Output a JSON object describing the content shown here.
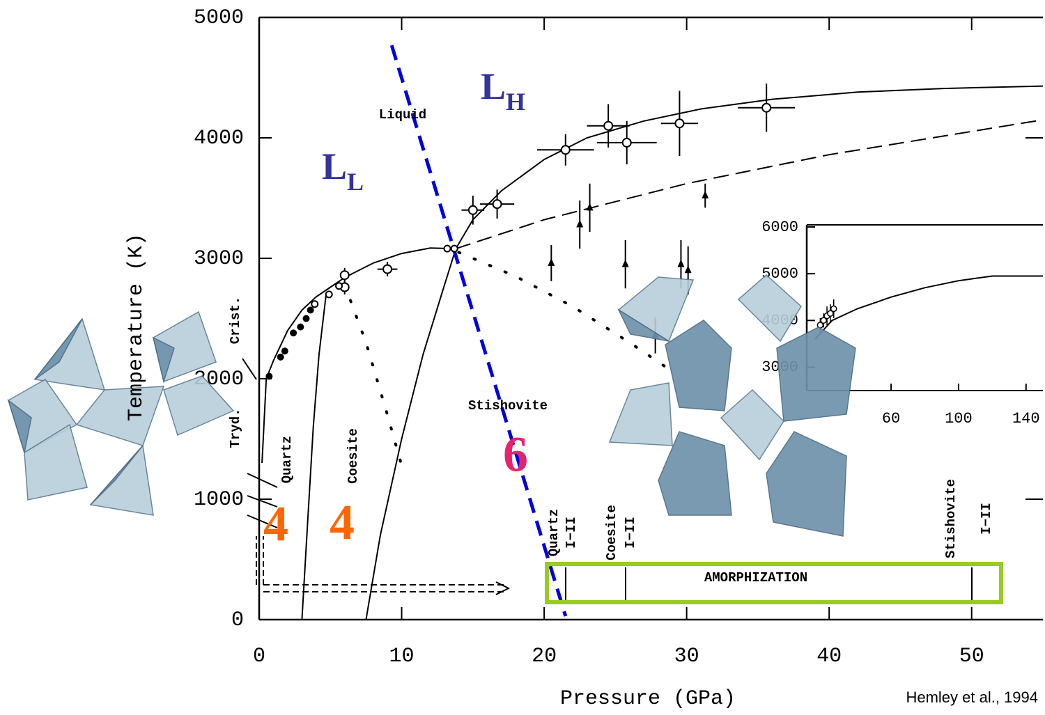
{
  "chart_data": {
    "type": "scatter",
    "x_label": "Pressure (GPa)",
    "y_label": "Temperature (K)",
    "source": "Hemley et al., 1994",
    "xlim": [
      0,
      55
    ],
    "xticks": [
      0,
      10,
      20,
      30,
      40,
      50
    ],
    "ylim": [
      0,
      5000
    ],
    "yticks": [
      0,
      1000,
      2000,
      3000,
      4000,
      5000
    ],
    "labels": {
      "liquid": "Liquid",
      "stishovite": "Stishovite",
      "quartz": "Quartz",
      "coesite": "Coesite",
      "tryd": "Tryd.",
      "crist": "Crist.",
      "amorphization": "AMORPHIZATION",
      "quartz_ii": [
        "Quartz",
        "I−II"
      ],
      "coesite_ii": [
        "Coesite",
        "I−II"
      ],
      "stishovite_ii": [
        "Stishovite",
        "I−II"
      ],
      "low_density_liquid": {
        "main": "L",
        "sub": "L"
      },
      "high_density_liquid": {
        "main": "L",
        "sub": "H"
      },
      "coordination": [
        "4",
        "4",
        "6"
      ]
    },
    "curves": [
      {
        "color": "#000000",
        "style": "solid",
        "x": [
          0.2,
          0.5,
          1,
          2,
          3,
          4,
          5,
          6,
          8,
          10,
          12,
          13.8
        ],
        "values": [
          1300,
          2000,
          2150,
          2400,
          2570,
          2680,
          2760,
          2840,
          2960,
          3040,
          3085,
          3080
        ]
      },
      {
        "color": "#000000",
        "style": "solid",
        "x": [
          7.5,
          8.5,
          10,
          11.5,
          12.8,
          13.8,
          15,
          17,
          20,
          23,
          27,
          31,
          36,
          42,
          48,
          55
        ],
        "values": [
          0,
          700,
          1500,
          2200,
          2700,
          3080,
          3320,
          3560,
          3820,
          4000,
          4140,
          4240,
          4320,
          4380,
          4410,
          4430
        ]
      },
      {
        "color": "#000000",
        "style": "solid",
        "x": [
          3,
          3.4,
          3.8,
          4.2,
          4.7
        ],
        "values": [
          0,
          800,
          1600,
          2200,
          2700
        ]
      },
      {
        "color": "#000000",
        "style": "dashed",
        "x": [
          13.8,
          20,
          30,
          40,
          55
        ],
        "values": [
          3080,
          3320,
          3620,
          3860,
          4150
        ]
      },
      {
        "color": "#000000",
        "style": "dotted",
        "x": [
          6,
          7.5,
          9,
          10
        ],
        "values": [
          2780,
          2300,
          1700,
          1280
        ]
      },
      {
        "color": "#000000",
        "style": "dotted",
        "x": [
          14,
          18,
          22,
          26,
          28.5
        ],
        "values": [
          3050,
          2850,
          2600,
          2300,
          2100
        ]
      },
      {
        "color": "#0000dd",
        "style": "bluedash",
        "x": [
          9.3,
          21.5
        ],
        "values": [
          4769,
          29
        ]
      }
    ],
    "series": [
      {
        "color": "#000000",
        "marker": "open",
        "x": [
          6,
          6,
          9,
          15,
          16.7,
          21.5,
          24.5,
          25.8,
          29.5,
          35.6
        ],
        "values": [
          2860,
          2760,
          2910,
          3400,
          3450,
          3900,
          4100,
          3960,
          4120,
          4250
        ],
        "xerr": [
          0.3,
          0.3,
          0.7,
          0.8,
          1.2,
          2,
          1.5,
          2.1,
          1.3,
          2
        ],
        "yerr": [
          60,
          60,
          60,
          120,
          120,
          130,
          180,
          180,
          270,
          200
        ]
      },
      {
        "color": "#000000",
        "marker": "triangle",
        "x": [
          20.5,
          22.5,
          23.2,
          25.7,
          29.6,
          30.1,
          31.3,
          27.8
        ],
        "values": [
          2960,
          3280,
          3420,
          2950,
          2950,
          2900,
          3520,
          2360
        ],
        "yerr": [
          150,
          200,
          200,
          200,
          200,
          200,
          100,
          150
        ]
      },
      {
        "color": "#000000",
        "marker": "filled",
        "x": [
          0.7,
          1.5,
          1.8,
          2.4,
          2.9,
          3.3,
          3.6
        ],
        "values": [
          2020,
          2180,
          2230,
          2380,
          2430,
          2500,
          2570
        ]
      },
      {
        "color": "#000000",
        "marker": "small-open",
        "x": [
          3.9,
          4.9,
          5.6,
          13.2,
          13.7
        ],
        "values": [
          2620,
          2700,
          2770,
          3080,
          3080
        ]
      }
    ],
    "inset": {
      "xlim": [
        10,
        150
      ],
      "xticks": [
        60,
        100,
        140
      ],
      "ylim": [
        2500,
        6000
      ],
      "yticks": [
        3000,
        4000,
        5000,
        6000
      ],
      "curve": {
        "x": [
          15,
          25,
          40,
          60,
          80,
          100,
          120,
          150
        ],
        "values": [
          3600,
          4000,
          4250,
          4500,
          4700,
          4850,
          4950,
          4950
        ]
      },
      "points": {
        "x": [
          18,
          20,
          22,
          24,
          26
        ],
        "values": [
          3900,
          4000,
          4100,
          4150,
          4250
        ],
        "yerr": [
          150,
          150,
          200,
          200,
          200
        ]
      }
    }
  }
}
